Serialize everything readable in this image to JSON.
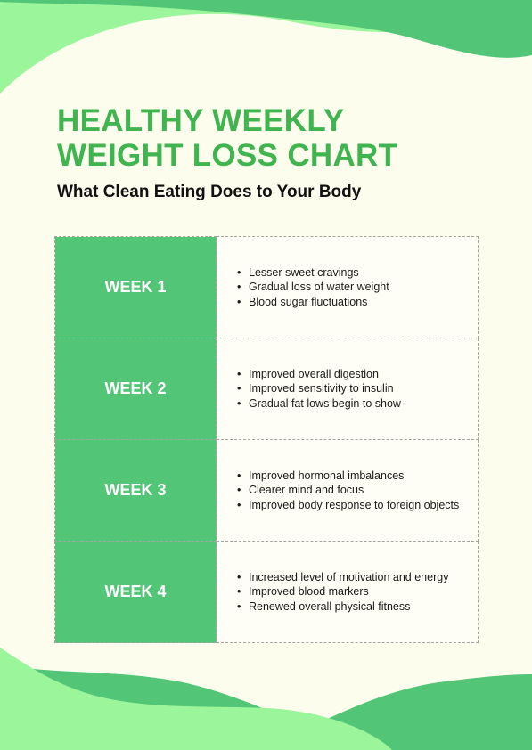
{
  "title_lines": [
    "HEALTHY WEEKLY",
    "WEIGHT LOSS CHART"
  ],
  "subtitle": "What Clean Eating Does to Your Body",
  "colors": {
    "background": "#fdfdee",
    "title": "#3fb44f",
    "week_cell": "#52c676",
    "wave_dark": "#52c676",
    "wave_light": "#9bf59a"
  },
  "weeks": [
    {
      "label": "WEEK 1",
      "points": [
        "Lesser sweet cravings",
        "Gradual loss of water weight",
        "Blood sugar fluctuations"
      ]
    },
    {
      "label": "WEEK 2",
      "points": [
        "Improved overall digestion",
        "Improved sensitivity to insulin",
        "Gradual fat lows begin to show"
      ]
    },
    {
      "label": "WEEK 3",
      "points": [
        "Improved hormonal imbalances",
        "Clearer mind and focus",
        "Improved body response to foreign objects"
      ]
    },
    {
      "label": "WEEK 4",
      "points": [
        "Increased level of motivation and energy",
        "Improved blood markers",
        "Renewed overall physical fitness"
      ]
    }
  ]
}
